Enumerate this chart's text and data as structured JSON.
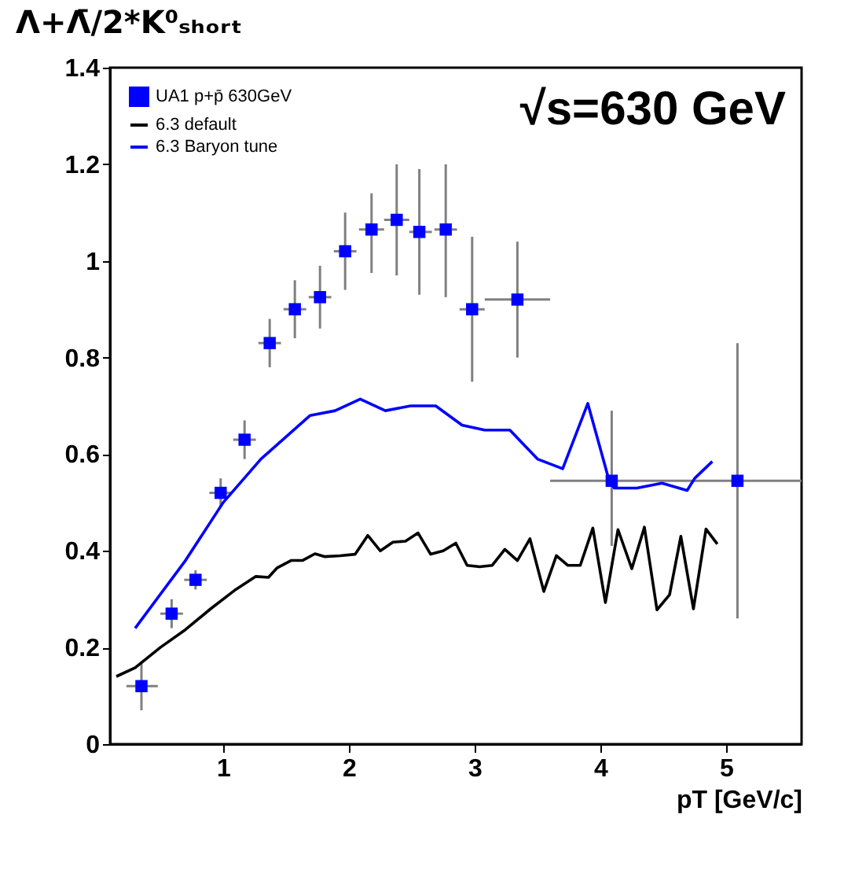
{
  "chart_data": {
    "type": "line",
    "title": "Λ+Λ̄/2*K⁰ₛₕₒᵣₜ",
    "xlabel": "pT [GeV/c]",
    "xlim": [
      0.1,
      5.6
    ],
    "ylim": [
      0,
      1.4
    ],
    "xticks": [
      1,
      2,
      3,
      4,
      5
    ],
    "yticks": [
      0,
      0.2,
      0.4,
      0.6,
      0.8,
      1,
      1.2,
      1.4
    ],
    "grid": false,
    "legend": "top left",
    "annotations": [
      "√s=630 GeV"
    ],
    "series": [
      {
        "name": "UA1 p+p̄ 630GeV",
        "type": "scatter",
        "marker": "square",
        "color": "#0000ff",
        "x": [
          0.35,
          0.59,
          0.78,
          0.98,
          1.17,
          1.37,
          1.57,
          1.77,
          1.97,
          2.18,
          2.38,
          2.56,
          2.77,
          2.98,
          3.34,
          4.09,
          5.09
        ],
        "values": [
          0.12,
          0.27,
          0.34,
          0.52,
          0.63,
          0.83,
          0.9,
          0.925,
          1.02,
          1.065,
          1.085,
          1.06,
          1.065,
          0.9,
          0.92,
          0.545,
          0.545
        ],
        "errors": [
          [
            0.07,
            0.17
          ],
          [
            0.24,
            0.3
          ],
          [
            0.32,
            0.36
          ],
          [
            0.49,
            0.55
          ],
          [
            0.59,
            0.67
          ],
          [
            0.78,
            0.88
          ],
          [
            0.84,
            0.96
          ],
          [
            0.86,
            0.99
          ],
          [
            0.94,
            1.1
          ],
          [
            0.975,
            1.14
          ],
          [
            0.97,
            1.2
          ],
          [
            0.93,
            1.19
          ],
          [
            0.925,
            1.2
          ],
          [
            0.75,
            1.05
          ],
          [
            0.8,
            1.04
          ],
          [
            0.41,
            0.69
          ],
          [
            0.26,
            0.83
          ]
        ],
        "xerrors": [
          [
            0.23,
            0.48
          ],
          [
            0.5,
            0.68
          ],
          [
            0.69,
            0.87
          ],
          [
            0.89,
            1.07
          ],
          [
            1.08,
            1.26
          ],
          [
            1.28,
            1.46
          ],
          [
            1.48,
            1.66
          ],
          [
            1.68,
            1.86
          ],
          [
            1.88,
            2.06
          ],
          [
            2.08,
            2.28
          ],
          [
            2.28,
            2.48
          ],
          [
            2.48,
            2.66
          ],
          [
            2.68,
            2.86
          ],
          [
            2.88,
            3.08
          ],
          [
            3.08,
            3.6
          ],
          [
            3.6,
            4.6
          ],
          [
            4.6,
            5.6
          ]
        ]
      },
      {
        "name": "6.3 default",
        "marker": "none",
        "color": "#000000",
        "x": [
          0.15,
          0.3,
          0.5,
          0.7,
          0.9,
          1.1,
          1.26,
          1.36,
          1.43,
          1.54,
          1.63,
          1.73,
          1.81,
          1.93,
          2.05,
          2.15,
          2.25,
          2.35,
          2.45,
          2.55,
          2.65,
          2.75,
          2.85,
          2.94,
          3.04,
          3.14,
          3.24,
          3.34,
          3.44,
          3.55,
          3.65,
          3.74,
          3.84,
          3.94,
          4.04,
          4.14,
          4.25,
          4.35,
          4.45,
          4.55,
          4.64,
          4.74,
          4.84,
          4.93
        ],
        "values": [
          0.14,
          0.158,
          0.2,
          0.237,
          0.28,
          0.32,
          0.347,
          0.345,
          0.365,
          0.38,
          0.38,
          0.394,
          0.388,
          0.39,
          0.393,
          0.432,
          0.4,
          0.418,
          0.42,
          0.437,
          0.393,
          0.4,
          0.416,
          0.37,
          0.367,
          0.37,
          0.403,
          0.38,
          0.425,
          0.316,
          0.39,
          0.37,
          0.37,
          0.447,
          0.293,
          0.444,
          0.363,
          0.449,
          0.278,
          0.309,
          0.43,
          0.28,
          0.445,
          0.414
        ]
      },
      {
        "name": "6.3 Baryon tune",
        "marker": "none",
        "color": "#0000ff",
        "x": [
          0.3,
          0.7,
          1.0,
          1.3,
          1.69,
          1.89,
          2.09,
          2.29,
          2.49,
          2.69,
          2.9,
          3.08,
          3.28,
          3.5,
          3.7,
          3.9,
          4.07,
          4.11,
          4.29,
          4.49,
          4.69,
          4.75,
          4.89
        ],
        "values": [
          0.24,
          0.38,
          0.5,
          0.59,
          0.68,
          0.69,
          0.714,
          0.69,
          0.7,
          0.7,
          0.66,
          0.65,
          0.65,
          0.59,
          0.57,
          0.705,
          0.545,
          0.53,
          0.53,
          0.54,
          0.525,
          0.55,
          0.585
        ]
      }
    ]
  }
}
